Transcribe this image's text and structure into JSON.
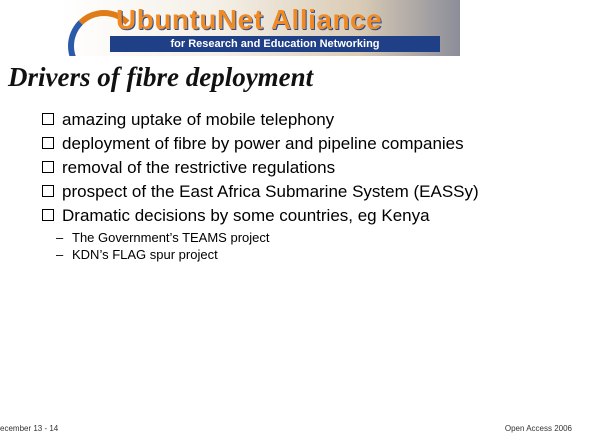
{
  "header": {
    "logo_name": "UbuntuNet Alliance",
    "logo_tagline": "for Research and Education Networking"
  },
  "title": "Drivers of fibre deployment",
  "bullets": [
    {
      "text": "amazing uptake of mobile telephony",
      "sub": []
    },
    {
      "text": "deployment of fibre by power and pipeline companies",
      "sub": []
    },
    {
      "text": "removal of the restrictive regulations",
      "sub": []
    },
    {
      "text": "prospect of the East Africa Submarine System (EASSy)",
      "sub": []
    },
    {
      "text": "Dramatic decisions by some countries, eg Kenya",
      "sub": [
        "The Government’s TEAMS project",
        "KDN’s FLAG spur project"
      ]
    }
  ],
  "footer": {
    "left": "ecember 13 - 14",
    "right": "Open Access 2006"
  }
}
